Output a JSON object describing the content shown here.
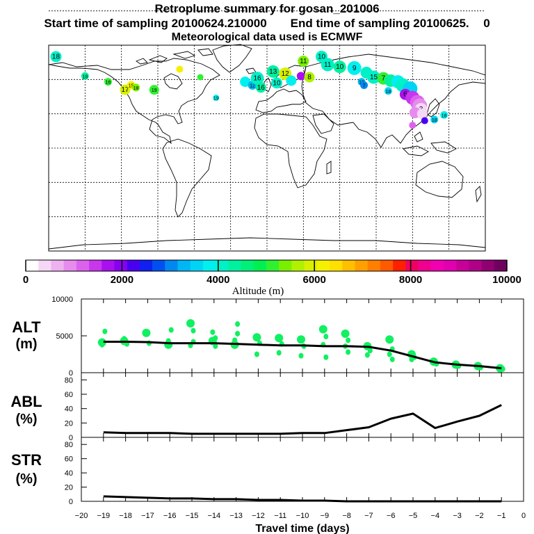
{
  "header": {
    "title": "Retroplume summary for gosan_201006",
    "start_label": "Start time of sampling 20100624.210000",
    "end_label": "End time of sampling 20100625.",
    "end_tail": "0",
    "met_label": "Meteorological data used is ECMWF"
  },
  "colorbar": {
    "label": "Altitude (m)",
    "range": [
      0,
      10000
    ],
    "ticks": [
      "0",
      "2000",
      "4000",
      "6000",
      "8000",
      "10000"
    ],
    "colors": [
      "#ffffff",
      "#f5d8f5",
      "#eeb2f0",
      "#e68cee",
      "#dc62ee",
      "#c836ee",
      "#aa10ee",
      "#8800f0",
      "#4a00f0",
      "#1020f0",
      "#0050f0",
      "#0088f0",
      "#00b6f5",
      "#00d4f5",
      "#00f0f0",
      "#00f0c8",
      "#00f0a0",
      "#00f078",
      "#00f050",
      "#30f030",
      "#7af000",
      "#b0f000",
      "#d8f000",
      "#f6f000",
      "#ffe000",
      "#ffc000",
      "#ffa000",
      "#ff8000",
      "#ff5a00",
      "#ff2000",
      "#f00060",
      "#f00090",
      "#f000b0",
      "#e000b0",
      "#c80098",
      "#b00088",
      "#900070",
      "#700060"
    ]
  },
  "map": {
    "plume_points": [
      {
        "lon": -174,
        "lat": 80,
        "alt": 4200,
        "label": "18",
        "size": 1.0
      },
      {
        "lon": -150,
        "lat": 63,
        "alt": 4400,
        "label": "18",
        "size": 0.5
      },
      {
        "lon": -131,
        "lat": 58,
        "alt": 5200,
        "label": "16",
        "size": 0.5
      },
      {
        "lon": -117,
        "lat": 51,
        "alt": 5800,
        "label": "17",
        "size": 0.9
      },
      {
        "lon": -112,
        "lat": 55,
        "alt": 6200,
        "label": "15",
        "size": 0.6
      },
      {
        "lon": -108,
        "lat": 53,
        "alt": 5500,
        "label": "18",
        "size": 0.5
      },
      {
        "lon": -93,
        "lat": 51,
        "alt": 5000,
        "label": "19",
        "size": 0.8
      },
      {
        "lon": -72,
        "lat": 69,
        "alt": 6300,
        "label": "",
        "size": 0.4
      },
      {
        "lon": -55,
        "lat": 62,
        "alt": 5000,
        "label": "",
        "size": 0.3
      },
      {
        "lon": -42,
        "lat": 44,
        "alt": 3800,
        "label": "19",
        "size": 0.3
      },
      {
        "lon": -18,
        "lat": 58,
        "alt": 3800,
        "label": "",
        "size": 0.9
      },
      {
        "lon": -12,
        "lat": 55,
        "alt": 3200,
        "label": "12",
        "size": 0.7
      },
      {
        "lon": -8,
        "lat": 61,
        "alt": 4000,
        "label": "16",
        "size": 1.3
      },
      {
        "lon": -5,
        "lat": 53,
        "alt": 4400,
        "label": "16",
        "size": 0.9
      },
      {
        "lon": 5,
        "lat": 67,
        "alt": 4300,
        "label": "13",
        "size": 1.2
      },
      {
        "lon": 8,
        "lat": 57,
        "alt": 4000,
        "label": "10",
        "size": 1.0
      },
      {
        "lon": 15,
        "lat": 65,
        "alt": 5900,
        "label": "12",
        "size": 1.2
      },
      {
        "lon": 20,
        "lat": 59,
        "alt": 3900,
        "label": "",
        "size": 0.9
      },
      {
        "lon": 28,
        "lat": 63,
        "alt": 1800,
        "label": "",
        "size": 0.6
      },
      {
        "lon": 35,
        "lat": 62,
        "alt": 5600,
        "label": "8",
        "size": 0.9
      },
      {
        "lon": 30,
        "lat": 76,
        "alt": 5400,
        "label": "11",
        "size": 1.0
      },
      {
        "lon": 45,
        "lat": 80,
        "alt": 4200,
        "label": "10",
        "size": 1.1
      },
      {
        "lon": 50,
        "lat": 73,
        "alt": 4000,
        "label": "11",
        "size": 1.3
      },
      {
        "lon": 60,
        "lat": 71,
        "alt": 4300,
        "label": "10",
        "size": 1.2
      },
      {
        "lon": 72,
        "lat": 70,
        "alt": 3900,
        "label": "9",
        "size": 1.4
      },
      {
        "lon": 82,
        "lat": 66,
        "alt": 4000,
        "label": "",
        "size": 1.1
      },
      {
        "lon": 88,
        "lat": 62,
        "alt": 4200,
        "label": "15",
        "size": 1.3
      },
      {
        "lon": 96,
        "lat": 61,
        "alt": 5100,
        "label": "7",
        "size": 1.2
      },
      {
        "lon": 102,
        "lat": 59,
        "alt": 4300,
        "label": "",
        "size": 1.2
      },
      {
        "lon": 108,
        "lat": 58,
        "alt": 3800,
        "label": "",
        "size": 1.3
      },
      {
        "lon": 112,
        "lat": 55,
        "alt": 4000,
        "label": "",
        "size": 1.4
      },
      {
        "lon": 118,
        "lat": 52,
        "alt": 3600,
        "label": "",
        "size": 1.5
      },
      {
        "lon": 78,
        "lat": 58,
        "alt": 3200,
        "label": "18",
        "size": 0.5
      },
      {
        "lon": 80,
        "lat": 55,
        "alt": 3000,
        "label": "7",
        "size": 0.5
      },
      {
        "lon": 100,
        "lat": 50,
        "alt": 3600,
        "label": "18",
        "size": 0.5
      },
      {
        "lon": 114,
        "lat": 47,
        "alt": 1800,
        "label": "6",
        "size": 1.0
      },
      {
        "lon": 120,
        "lat": 44,
        "alt": 1500,
        "label": "",
        "size": 1.4
      },
      {
        "lon": 124,
        "lat": 40,
        "alt": 1100,
        "label": "",
        "size": 1.5
      },
      {
        "lon": 126,
        "lat": 37,
        "alt": 800,
        "label": "",
        "size": 1.5
      },
      {
        "lon": 127,
        "lat": 34,
        "alt": 500,
        "label": "3",
        "size": 1.2
      },
      {
        "lon": 122,
        "lat": 31,
        "alt": 900,
        "label": "",
        "size": 1.0
      },
      {
        "lon": 128,
        "lat": 30,
        "alt": 400,
        "label": "",
        "size": 0.9
      },
      {
        "lon": 120,
        "lat": 20,
        "alt": 1300,
        "label": "",
        "size": 0.4
      },
      {
        "lon": 130,
        "lat": 24,
        "alt": 2200,
        "label": "",
        "size": 0.4
      },
      {
        "lon": 138,
        "lat": 25,
        "alt": 3500,
        "label": "18",
        "size": 0.5
      },
      {
        "lon": 146,
        "lat": 29,
        "alt": 3800,
        "label": "18",
        "size": 0.5
      }
    ]
  },
  "panels": {
    "alt": {
      "label1": "ALT",
      "label2": "(m)",
      "ymax": 10000,
      "ticks": [
        "0",
        "5000",
        "10000"
      ]
    },
    "abl": {
      "label1": "ABL",
      "label2": "(%)",
      "ymax": 90,
      "ticks": [
        "0",
        "20",
        "40",
        "60",
        "80"
      ]
    },
    "str": {
      "label1": "STR",
      "label2": "(%)",
      "ymax": 90,
      "ticks": [
        "0",
        "20",
        "40",
        "60",
        "80"
      ]
    }
  },
  "xaxis": {
    "label": "Travel time (days)",
    "min": -20,
    "max": 0,
    "ticks": [
      "−20",
      "−19",
      "−18",
      "−17",
      "−16",
      "−15",
      "−14",
      "−13",
      "−12",
      "−11",
      "−10",
      "−9",
      "−8",
      "−7",
      "−6",
      "−5",
      "−4",
      "−3",
      "−2",
      "−1",
      "0"
    ]
  },
  "chart_data": {
    "type": "line",
    "title": "Retroplume summary for gosan_201006",
    "xlabel": "Travel time (days)",
    "x": [
      -19,
      -18,
      -17,
      -16,
      -15,
      -14,
      -13,
      -12,
      -11,
      -10,
      -9,
      -8,
      -7,
      -6,
      -5,
      -4,
      -3,
      -2,
      -1
    ],
    "series": [
      {
        "name": "ALT (m)",
        "ylim": [
          0,
          10000
        ],
        "values": [
          4200,
          4200,
          4150,
          4000,
          4000,
          4000,
          3900,
          3800,
          3700,
          3700,
          3600,
          3600,
          3500,
          3000,
          2200,
          1400,
          1100,
          900,
          600
        ]
      },
      {
        "name": "ABL (%)",
        "ylim": [
          0,
          90
        ],
        "values": [
          7,
          6,
          6,
          6,
          5,
          5,
          5,
          5,
          5,
          6,
          6,
          10,
          14,
          26,
          33,
          13,
          22,
          30,
          45
        ]
      },
      {
        "name": "STR (%)",
        "ylim": [
          0,
          90
        ],
        "values": [
          7,
          6,
          5,
          4,
          4,
          3,
          3,
          2,
          2,
          1,
          1,
          0,
          0,
          0,
          0,
          0,
          0,
          0,
          0
        ]
      }
    ],
    "alt_spread": [
      {
        "day": -19,
        "alts": [
          4100,
          5600,
          3800
        ]
      },
      {
        "day": -18,
        "alts": [
          4300,
          3900,
          4600
        ]
      },
      {
        "day": -17,
        "alts": [
          5400,
          4000
        ]
      },
      {
        "day": -16,
        "alts": [
          3800,
          5800,
          4300
        ]
      },
      {
        "day": -15,
        "alts": [
          6700,
          4200,
          3700,
          5700
        ]
      },
      {
        "day": -14,
        "alts": [
          4300,
          3600,
          5500,
          4700
        ]
      },
      {
        "day": -13,
        "alts": [
          3800,
          6600,
          4400,
          5300
        ]
      },
      {
        "day": -12,
        "alts": [
          4800,
          4000,
          2500
        ]
      },
      {
        "day": -11,
        "alts": [
          4700,
          3900,
          2700
        ]
      },
      {
        "day": -10,
        "alts": [
          4500,
          3600,
          2300
        ]
      },
      {
        "day": -9,
        "alts": [
          5900,
          4900,
          3800,
          2100
        ]
      },
      {
        "day": -8,
        "alts": [
          5300,
          4400,
          3600,
          2800
        ]
      },
      {
        "day": -7,
        "alts": [
          3600,
          3000,
          2400
        ]
      },
      {
        "day": -6,
        "alts": [
          4500,
          3200,
          2500,
          1800
        ]
      },
      {
        "day": -5,
        "alts": [
          2500,
          2100,
          1800
        ]
      },
      {
        "day": -4,
        "alts": [
          1500,
          1200
        ]
      },
      {
        "day": -3,
        "alts": [
          1100,
          900
        ]
      },
      {
        "day": -2,
        "alts": [
          900,
          700
        ]
      },
      {
        "day": -1,
        "alts": [
          600,
          500
        ]
      }
    ]
  }
}
